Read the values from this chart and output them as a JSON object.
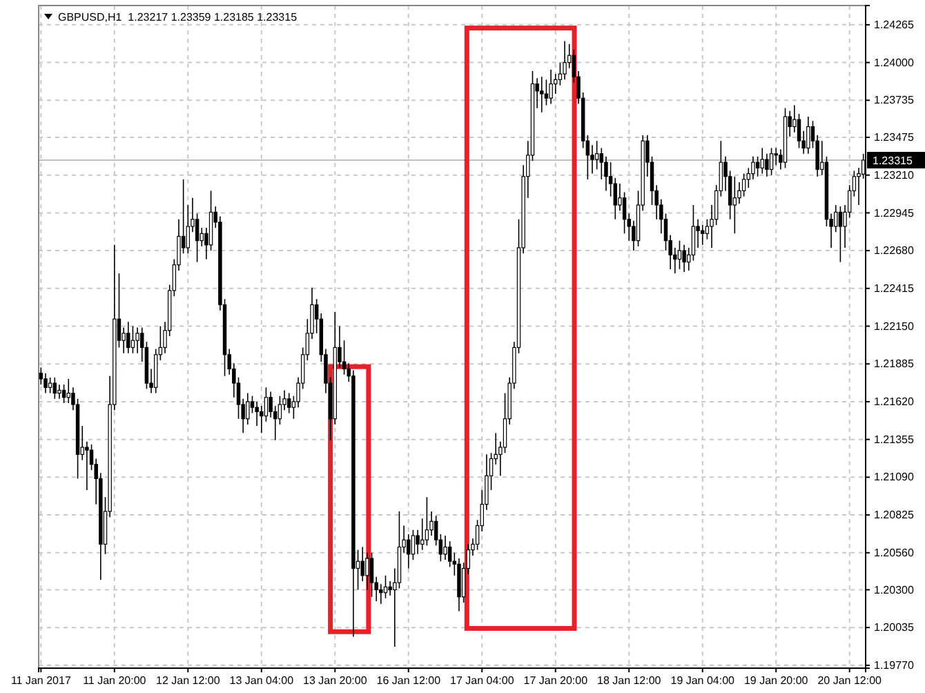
{
  "chart_data": {
    "type": "candlestick",
    "title": "GBPUSD,H1  1.23217 1.23359 1.23185 1.23315",
    "categories": [
      "11 Jan 2017",
      null,
      null,
      null,
      null,
      null,
      null,
      null,
      null,
      null,
      null,
      null,
      null,
      null,
      null,
      null,
      "11 Jan 20:00",
      null,
      null,
      null,
      null,
      null,
      null,
      null,
      null,
      null,
      null,
      null,
      null,
      null,
      null,
      null,
      "12 Jan 12:00",
      null,
      null,
      null,
      null,
      null,
      null,
      null,
      null,
      null,
      null,
      null,
      null,
      null,
      null,
      null,
      "13 Jan 04:00",
      null,
      null,
      null,
      null,
      null,
      null,
      null,
      null,
      null,
      null,
      null,
      null,
      null,
      null,
      null,
      "13 Jan 20:00",
      null,
      null,
      null,
      null,
      null,
      null,
      null,
      null,
      null,
      null,
      null,
      null,
      null,
      null,
      null,
      "16 Jan 12:00",
      null,
      null,
      null,
      null,
      null,
      null,
      null,
      null,
      null,
      null,
      null,
      null,
      null,
      null,
      null,
      "17 Jan 04:00",
      null,
      null,
      null,
      null,
      null,
      null,
      null,
      null,
      null,
      null,
      null,
      null,
      null,
      null,
      null,
      "17 Jan 20:00",
      null,
      null,
      null,
      null,
      null,
      null,
      null,
      null,
      null,
      null,
      null,
      null,
      null,
      null,
      null,
      "18 Jan 12:00",
      null,
      null,
      null,
      null,
      null,
      null,
      null,
      null,
      null,
      null,
      null,
      null,
      null,
      null,
      null,
      "19 Jan 04:00",
      null,
      null,
      null,
      null,
      null,
      null,
      null,
      null,
      null,
      null,
      null,
      null,
      null,
      null,
      null,
      "19 Jan 20:00",
      null,
      null,
      null,
      null,
      null,
      null,
      null,
      null,
      null,
      null,
      null,
      null,
      null,
      null,
      null,
      "20 Jan 12:00",
      null,
      null,
      null
    ],
    "ohlc": [
      [
        1.2182,
        1.2186,
        1.2174,
        1.2178
      ],
      [
        1.2178,
        1.2182,
        1.2168,
        1.2172
      ],
      [
        1.2172,
        1.2179,
        1.2168,
        1.2175
      ],
      [
        1.2175,
        1.2179,
        1.2164,
        1.2168
      ],
      [
        1.2168,
        1.2174,
        1.2164,
        1.217
      ],
      [
        1.217,
        1.2174,
        1.2161,
        1.2165
      ],
      [
        1.2165,
        1.2178,
        1.2161,
        1.2168
      ],
      [
        1.2168,
        1.2172,
        1.2156,
        1.216
      ],
      [
        1.216,
        1.2164,
        1.2108,
        1.2125
      ],
      [
        1.2125,
        1.2145,
        1.2121,
        1.213
      ],
      [
        1.213,
        1.2134,
        1.21,
        1.2128
      ],
      [
        1.2128,
        1.2132,
        1.2114,
        1.2118
      ],
      [
        1.2118,
        1.2122,
        1.209,
        1.2108
      ],
      [
        1.2108,
        1.2112,
        1.2037,
        1.2062
      ],
      [
        1.2062,
        1.2095,
        1.2055,
        1.2085
      ],
      [
        1.2085,
        1.218,
        1.2081,
        1.216
      ],
      [
        1.216,
        1.2272,
        1.2156,
        1.222
      ],
      [
        1.222,
        1.2252,
        1.22,
        1.2205
      ],
      [
        1.2205,
        1.2214,
        1.2196,
        1.221
      ],
      [
        1.221,
        1.2218,
        1.2196,
        1.22
      ],
      [
        1.22,
        1.2215,
        1.2196,
        1.2205
      ],
      [
        1.2205,
        1.2214,
        1.2196,
        1.221
      ],
      [
        1.221,
        1.2214,
        1.219,
        1.22
      ],
      [
        1.22,
        1.2204,
        1.2171,
        1.2175
      ],
      [
        1.2175,
        1.2185,
        1.2168,
        1.2172
      ],
      [
        1.2172,
        1.2199,
        1.2168,
        1.2195
      ],
      [
        1.2195,
        1.2215,
        1.2191,
        1.22
      ],
      [
        1.22,
        1.2218,
        1.2196,
        1.2212
      ],
      [
        1.2212,
        1.2244,
        1.2208,
        1.224
      ],
      [
        1.224,
        1.2262,
        1.2236,
        1.2258
      ],
      [
        1.2258,
        1.229,
        1.2254,
        1.2278
      ],
      [
        1.2278,
        1.2318,
        1.2266,
        1.227
      ],
      [
        1.227,
        1.23,
        1.2266,
        1.2285
      ],
      [
        1.2285,
        1.2305,
        1.2281,
        1.229
      ],
      [
        1.229,
        1.2294,
        1.226,
        1.2275
      ],
      [
        1.2275,
        1.2284,
        1.2271,
        1.228
      ],
      [
        1.228,
        1.2284,
        1.2262,
        1.2272
      ],
      [
        1.2272,
        1.231,
        1.2268,
        1.2295
      ],
      [
        1.2295,
        1.2299,
        1.2284,
        1.2288
      ],
      [
        1.2288,
        1.2292,
        1.2226,
        1.223
      ],
      [
        1.223,
        1.2234,
        1.218,
        1.2195
      ],
      [
        1.2195,
        1.2199,
        1.2181,
        1.2185
      ],
      [
        1.2185,
        1.2189,
        1.2165,
        1.2175
      ],
      [
        1.2175,
        1.2179,
        1.215,
        1.216
      ],
      [
        1.216,
        1.2164,
        1.214,
        1.215
      ],
      [
        1.215,
        1.2168,
        1.2146,
        1.2162
      ],
      [
        1.2162,
        1.2166,
        1.2154,
        1.2158
      ],
      [
        1.2158,
        1.2162,
        1.2145,
        1.2155
      ],
      [
        1.2155,
        1.2159,
        1.214,
        1.2152
      ],
      [
        1.2152,
        1.2172,
        1.2148,
        1.2165
      ],
      [
        1.2165,
        1.2169,
        1.2151,
        1.2155
      ],
      [
        1.2155,
        1.2159,
        1.2135,
        1.215
      ],
      [
        1.215,
        1.2166,
        1.2146,
        1.216
      ],
      [
        1.216,
        1.217,
        1.2156,
        1.2164
      ],
      [
        1.2164,
        1.2168,
        1.2154,
        1.2158
      ],
      [
        1.2158,
        1.2166,
        1.215,
        1.2162
      ],
      [
        1.2162,
        1.2179,
        1.2158,
        1.2175
      ],
      [
        1.2175,
        1.22,
        1.2171,
        1.2195
      ],
      [
        1.2195,
        1.222,
        1.2191,
        1.221
      ],
      [
        1.221,
        1.2242,
        1.2206,
        1.223
      ],
      [
        1.223,
        1.2234,
        1.221,
        1.222
      ],
      [
        1.222,
        1.2224,
        1.219,
        1.2195
      ],
      [
        1.2195,
        1.2199,
        1.2168,
        1.2175
      ],
      [
        1.2175,
        1.2179,
        1.2135,
        1.215
      ],
      [
        1.215,
        1.2225,
        1.2146,
        1.22
      ],
      [
        1.22,
        1.2215,
        1.2186,
        1.219
      ],
      [
        1.219,
        1.2205,
        1.2181,
        1.2185
      ],
      [
        1.2185,
        1.2189,
        1.2176,
        1.218
      ],
      [
        1.218,
        1.2184,
        1.1997,
        1.2045
      ],
      [
        1.2045,
        1.2058,
        1.203,
        1.205
      ],
      [
        1.205,
        1.206,
        1.2036,
        1.204
      ],
      [
        1.204,
        1.2056,
        1.203,
        1.2052
      ],
      [
        1.2052,
        1.2056,
        1.2025,
        1.2035
      ],
      [
        1.2035,
        1.2039,
        1.2022,
        1.203
      ],
      [
        1.203,
        1.2034,
        1.202,
        1.2028
      ],
      [
        1.2028,
        1.204,
        1.2024,
        1.2032
      ],
      [
        1.2032,
        1.2036,
        1.2026,
        1.203
      ],
      [
        1.203,
        1.2045,
        1.199,
        1.2035
      ],
      [
        1.2035,
        1.2085,
        1.2031,
        1.206
      ],
      [
        1.206,
        1.2075,
        1.2056,
        1.2065
      ],
      [
        1.2065,
        1.2069,
        1.2045,
        1.2055
      ],
      [
        1.2055,
        1.2072,
        1.2051,
        1.2068
      ],
      [
        1.2068,
        1.2072,
        1.2055,
        1.2062
      ],
      [
        1.2062,
        1.208,
        1.2058,
        1.2065
      ],
      [
        1.2065,
        1.2095,
        1.2061,
        1.2072
      ],
      [
        1.2072,
        1.2085,
        1.2068,
        1.2078
      ],
      [
        1.2078,
        1.2082,
        1.2061,
        1.2065
      ],
      [
        1.2065,
        1.2069,
        1.205,
        1.2055
      ],
      [
        1.2055,
        1.2068,
        1.2051,
        1.206
      ],
      [
        1.206,
        1.2064,
        1.2046,
        1.205
      ],
      [
        1.205,
        1.2056,
        1.204,
        1.2048
      ],
      [
        1.2048,
        1.2052,
        1.2015,
        1.2025
      ],
      [
        1.2025,
        1.2049,
        1.2021,
        1.2045
      ],
      [
        1.2045,
        1.2062,
        1.2041,
        1.2058
      ],
      [
        1.2058,
        1.2066,
        1.2054,
        1.2062
      ],
      [
        1.2062,
        1.2079,
        1.2058,
        1.2075
      ],
      [
        1.2075,
        1.21,
        1.2071,
        1.209
      ],
      [
        1.209,
        1.2125,
        1.2086,
        1.211
      ],
      [
        1.211,
        1.2126,
        1.21,
        1.2122
      ],
      [
        1.2122,
        1.214,
        1.2118,
        1.2125
      ],
      [
        1.2125,
        1.2134,
        1.211,
        1.213
      ],
      [
        1.213,
        1.2168,
        1.2126,
        1.215
      ],
      [
        1.215,
        1.2179,
        1.2146,
        1.2175
      ],
      [
        1.2175,
        1.2204,
        1.2171,
        1.22
      ],
      [
        1.22,
        1.229,
        1.2196,
        1.227
      ],
      [
        1.227,
        1.2328,
        1.2266,
        1.232
      ],
      [
        1.232,
        1.2345,
        1.2305,
        1.2335
      ],
      [
        1.2335,
        1.2394,
        1.2331,
        1.2385
      ],
      [
        1.2385,
        1.2389,
        1.2368,
        1.238
      ],
      [
        1.238,
        1.239,
        1.2365,
        1.2378
      ],
      [
        1.2378,
        1.2388,
        1.237,
        1.2375
      ],
      [
        1.2375,
        1.2395,
        1.2371,
        1.2385
      ],
      [
        1.2385,
        1.2392,
        1.2378,
        1.2388
      ],
      [
        1.2388,
        1.24,
        1.2384,
        1.2392
      ],
      [
        1.2392,
        1.2415,
        1.2388,
        1.24
      ],
      [
        1.24,
        1.2413,
        1.2396,
        1.2405
      ],
      [
        1.2405,
        1.2409,
        1.2386,
        1.239
      ],
      [
        1.239,
        1.2394,
        1.2371,
        1.2375
      ],
      [
        1.2375,
        1.2379,
        1.234,
        1.2345
      ],
      [
        1.2345,
        1.2349,
        1.2318,
        1.2335
      ],
      [
        1.2335,
        1.2342,
        1.2322,
        1.2332
      ],
      [
        1.2332,
        1.2345,
        1.2325,
        1.2336
      ],
      [
        1.2336,
        1.234,
        1.2318,
        1.233
      ],
      [
        1.233,
        1.2334,
        1.231,
        1.232
      ],
      [
        1.232,
        1.233,
        1.2306,
        1.2315
      ],
      [
        1.2315,
        1.2319,
        1.229,
        1.23
      ],
      [
        1.23,
        1.2315,
        1.2296,
        1.2305
      ],
      [
        1.2305,
        1.2309,
        1.228,
        1.229
      ],
      [
        1.229,
        1.2294,
        1.2275,
        1.2285
      ],
      [
        1.2285,
        1.2289,
        1.2268,
        1.2275
      ],
      [
        1.2275,
        1.231,
        1.2271,
        1.23
      ],
      [
        1.23,
        1.2349,
        1.2296,
        1.2345
      ],
      [
        1.2345,
        1.2349,
        1.232,
        1.233
      ],
      [
        1.233,
        1.2334,
        1.23,
        1.231
      ],
      [
        1.231,
        1.2314,
        1.229,
        1.23
      ],
      [
        1.23,
        1.2304,
        1.228,
        1.229
      ],
      [
        1.229,
        1.2294,
        1.2268,
        1.2275
      ],
      [
        1.2275,
        1.2279,
        1.2255,
        1.2265
      ],
      [
        1.2265,
        1.227,
        1.2252,
        1.2262
      ],
      [
        1.2262,
        1.2275,
        1.2255,
        1.2268
      ],
      [
        1.2268,
        1.2272,
        1.2253,
        1.226
      ],
      [
        1.226,
        1.227,
        1.2254,
        1.2265
      ],
      [
        1.2265,
        1.23,
        1.2261,
        1.2285
      ],
      [
        1.2285,
        1.229,
        1.227,
        1.2282
      ],
      [
        1.2282,
        1.2286,
        1.2272,
        1.228
      ],
      [
        1.228,
        1.229,
        1.2276,
        1.2285
      ],
      [
        1.2285,
        1.23,
        1.227,
        1.229
      ],
      [
        1.229,
        1.2314,
        1.2286,
        1.231
      ],
      [
        1.231,
        1.2345,
        1.2306,
        1.233
      ],
      [
        1.233,
        1.2334,
        1.231,
        1.232
      ],
      [
        1.232,
        1.2324,
        1.229,
        1.23
      ],
      [
        1.23,
        1.232,
        1.228,
        1.2305
      ],
      [
        1.2305,
        1.2316,
        1.2301,
        1.231
      ],
      [
        1.231,
        1.2322,
        1.2306,
        1.2318
      ],
      [
        1.2318,
        1.2326,
        1.2312,
        1.2322
      ],
      [
        1.2322,
        1.2334,
        1.2318,
        1.233
      ],
      [
        1.233,
        1.2334,
        1.232,
        1.2326
      ],
      [
        1.2326,
        1.234,
        1.2322,
        1.2332
      ],
      [
        1.2332,
        1.2336,
        1.232,
        1.2325
      ],
      [
        1.2325,
        1.234,
        1.2321,
        1.2336
      ],
      [
        1.2336,
        1.234,
        1.2328,
        1.2335
      ],
      [
        1.2335,
        1.2339,
        1.2325,
        1.233
      ],
      [
        1.233,
        1.2368,
        1.2326,
        1.2362
      ],
      [
        1.2362,
        1.2366,
        1.2348,
        1.2355
      ],
      [
        1.2355,
        1.237,
        1.2351,
        1.236
      ],
      [
        1.236,
        1.2364,
        1.234,
        1.2345
      ],
      [
        1.2345,
        1.2352,
        1.2336,
        1.234
      ],
      [
        1.234,
        1.2362,
        1.2336,
        1.2355
      ],
      [
        1.2355,
        1.2359,
        1.234,
        1.2345
      ],
      [
        1.2345,
        1.2349,
        1.232,
        1.2325
      ],
      [
        1.2325,
        1.2345,
        1.2321,
        1.233
      ],
      [
        1.233,
        1.2334,
        1.2285,
        1.229
      ],
      [
        1.229,
        1.2294,
        1.227,
        1.2285
      ],
      [
        1.2285,
        1.23,
        1.2281,
        1.2295
      ],
      [
        1.2295,
        1.2299,
        1.226,
        1.2285
      ],
      [
        1.2285,
        1.23,
        1.227,
        1.2295
      ],
      [
        1.2295,
        1.2314,
        1.2291,
        1.231
      ],
      [
        1.231,
        1.2324,
        1.2306,
        1.232
      ],
      [
        1.232,
        1.2326,
        1.23,
        1.2322
      ],
      [
        1.23217,
        1.23359,
        1.23185,
        1.23315
      ]
    ],
    "ylim": [
      1.1975,
      1.244
    ],
    "yticks": [
      {
        "value": 1.1977,
        "label": "1.19770"
      },
      1.20035,
      {
        "value": 1.203,
        "label": "1.20300"
      },
      {
        "value": 1.2056,
        "label": "1.20560"
      },
      1.20825,
      {
        "value": 1.2109,
        "label": "1.21090"
      },
      1.21355,
      {
        "value": 1.2162,
        "label": "1.21620"
      },
      1.21885,
      {
        "value": 1.2215,
        "label": "1.22150"
      },
      1.22415,
      {
        "value": 1.2268,
        "label": "1.22680"
      },
      1.22945,
      {
        "value": 1.2321,
        "label": "1.23210"
      },
      1.23475,
      1.23735,
      {
        "value": 1.24,
        "label": "1.24000"
      },
      1.24265
    ],
    "ref_lines": [
      {
        "axis": "y",
        "value": 1.23315,
        "label": "1.23315",
        "color": "#c0c0c0"
      }
    ],
    "grid": true
  }
}
